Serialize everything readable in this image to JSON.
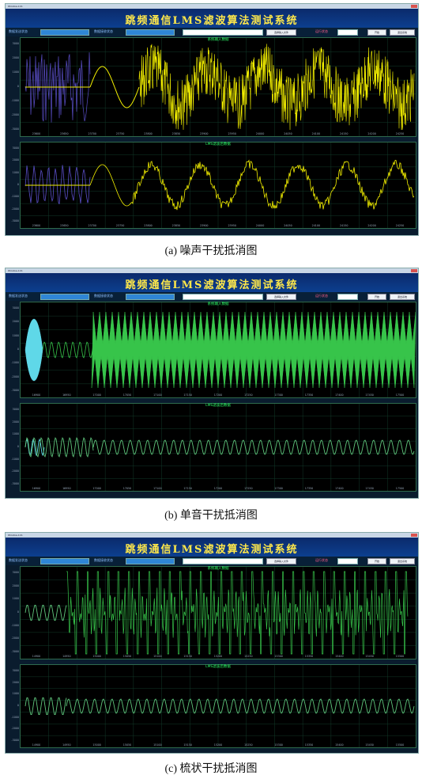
{
  "window": {
    "title": "Window-1C1"
  },
  "app_title": "跳频通信LMS滤波算法测试系统",
  "controls": {
    "label_a": "数据发送状态",
    "label_b": "数据接收状态",
    "label_c": "运行状态",
    "load_button": "选择输入文件",
    "start_button": "开始",
    "exit_button": "退出系统"
  },
  "colors": {
    "raw": "#5a4fc8",
    "yellow": "#f4f000",
    "cyan": "#5fd8e8",
    "green": "#37c44a",
    "cleaned_green": "#5ec37a",
    "title_text": "#ffe84a",
    "plot_title": "#2cff6a"
  },
  "panels": [
    {
      "caption": "(a) 噪声干扰抵消图",
      "input_title": "系统输入数据",
      "output_title": "LMS滤波后数据",
      "y_ticks": [
        "3000",
        "2000",
        "1000",
        "0",
        "-1000",
        "-2000",
        "-3000"
      ],
      "x_ticks_in": [
        "23600",
        "23650",
        "23700",
        "23750",
        "23800",
        "23850",
        "23900",
        "23950",
        "24000",
        "24050",
        "24100",
        "24150",
        "24200",
        "24250"
      ],
      "x_ticks_out": [
        "23600",
        "23650",
        "23700",
        "23750",
        "23800",
        "23850",
        "23900",
        "23950",
        "24000",
        "24050",
        "24100",
        "24150",
        "24200",
        "24250"
      ]
    },
    {
      "caption": "(b) 单音干扰抵消图",
      "input_title": "系统输入数据",
      "output_title": "LMS滤波后数据",
      "y_ticks": [
        "3000",
        "2000",
        "1000",
        "0",
        "-1000",
        "-2000",
        "-3000"
      ],
      "x_ticks_in": [
        "16900",
        "16950",
        "17000",
        "17050",
        "17100",
        "17150",
        "17200",
        "17250",
        "17300",
        "17350",
        "17400",
        "17450",
        "17500"
      ],
      "x_ticks_out": [
        "16900",
        "16950",
        "17000",
        "17050",
        "17100",
        "17150",
        "17200",
        "17250",
        "17300",
        "17350",
        "17400",
        "17450",
        "17500"
      ]
    },
    {
      "caption": "(c) 梳状干扰抵消图",
      "input_title": "系统输入数据",
      "output_title": "LMS滤波后数据",
      "y_ticks": [
        "3000",
        "2000",
        "1000",
        "0",
        "-1000",
        "-2000",
        "-3000"
      ],
      "x_ticks_in": [
        "14900",
        "14950",
        "15000",
        "15050",
        "15100",
        "15150",
        "15200",
        "15250",
        "15300",
        "15350",
        "15400",
        "15450",
        "15500"
      ],
      "x_ticks_out": [
        "14900",
        "14950",
        "15000",
        "15050",
        "15100",
        "15150",
        "15200",
        "15250",
        "15300",
        "15350",
        "15400",
        "15450",
        "15500"
      ]
    }
  ]
}
